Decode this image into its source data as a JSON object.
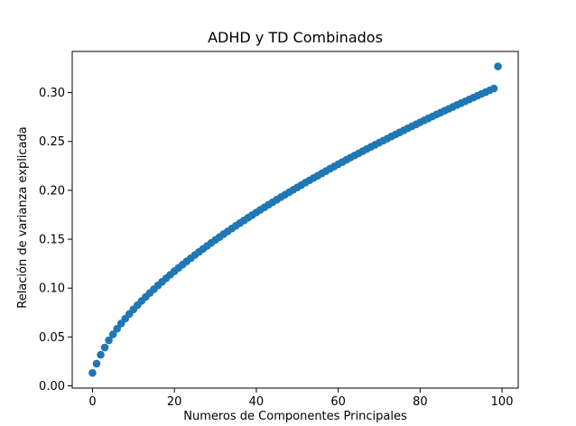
{
  "chart_data": {
    "type": "scatter",
    "title": "ADHD y TD Combinados",
    "xlabel": "Numeros de Componentes Principales",
    "ylabel": "Relación de varianza explicada",
    "xlim": [
      -4.95,
      103.95
    ],
    "ylim": [
      -0.0023,
      0.3421
    ],
    "xticks": [
      0,
      20,
      40,
      60,
      80,
      100
    ],
    "xtick_labels": [
      "0",
      "20",
      "40",
      "60",
      "80",
      "100"
    ],
    "yticks": [
      0.0,
      0.05,
      0.1,
      0.15,
      0.2,
      0.25,
      0.3
    ],
    "ytick_labels": [
      "0.00",
      "0.05",
      "0.10",
      "0.15",
      "0.20",
      "0.25",
      "0.30"
    ],
    "grid": false,
    "legend": "none",
    "marker_color": "#1f77b4",
    "x": [
      0,
      1,
      2,
      3,
      4,
      5,
      6,
      7,
      8,
      9,
      10,
      11,
      12,
      13,
      14,
      15,
      16,
      17,
      18,
      19,
      20,
      21,
      22,
      23,
      24,
      25,
      26,
      27,
      28,
      29,
      30,
      31,
      32,
      33,
      34,
      35,
      36,
      37,
      38,
      39,
      40,
      41,
      42,
      43,
      44,
      45,
      46,
      47,
      48,
      49,
      50,
      51,
      52,
      53,
      54,
      55,
      56,
      57,
      58,
      59,
      60,
      61,
      62,
      63,
      64,
      65,
      66,
      67,
      68,
      69,
      70,
      71,
      72,
      73,
      74,
      75,
      76,
      77,
      78,
      79,
      80,
      81,
      82,
      83,
      84,
      85,
      86,
      87,
      88,
      89,
      90,
      91,
      92,
      93,
      94,
      95,
      96,
      97,
      98,
      99
    ],
    "y": [
      0.0132,
      0.0227,
      0.0318,
      0.0392,
      0.0466,
      0.0527,
      0.0584,
      0.0638,
      0.0688,
      0.0736,
      0.0782,
      0.0826,
      0.0869,
      0.091,
      0.095,
      0.0989,
      0.1028,
      0.1065,
      0.1101,
      0.1137,
      0.1172,
      0.1207,
      0.124,
      0.1274,
      0.1306,
      0.1339,
      0.137,
      0.1401,
      0.1432,
      0.1463,
      0.1493,
      0.1522,
      0.1552,
      0.158,
      0.1609,
      0.1637,
      0.1665,
      0.1693,
      0.172,
      0.1747,
      0.1774,
      0.1801,
      0.1827,
      0.1853,
      0.1879,
      0.1905,
      0.193,
      0.1955,
      0.198,
      0.2005,
      0.203,
      0.2054,
      0.2079,
      0.2103,
      0.2127,
      0.215,
      0.2174,
      0.2197,
      0.2221,
      0.2244,
      0.2267,
      0.2289,
      0.2312,
      0.2335,
      0.2357,
      0.2379,
      0.2401,
      0.2423,
      0.2445,
      0.2466,
      0.2488,
      0.2509,
      0.253,
      0.2551,
      0.2572,
      0.2593,
      0.2614,
      0.2635,
      0.2655,
      0.2675,
      0.2696,
      0.2716,
      0.2736,
      0.2756,
      0.2776,
      0.2795,
      0.2815,
      0.2834,
      0.2854,
      0.2873,
      0.2892,
      0.2911,
      0.293,
      0.2949,
      0.2968,
      0.2987,
      0.3005,
      0.3024,
      0.3042,
      0.3268
    ]
  }
}
